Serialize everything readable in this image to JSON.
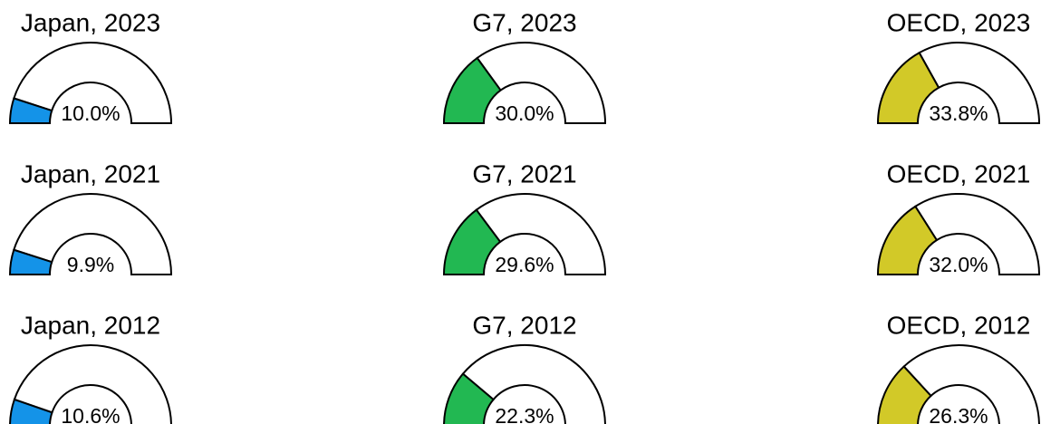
{
  "chart_data": [
    {
      "type": "gauge",
      "title": "Japan, 2023",
      "values": [
        10.0
      ],
      "value_labels": [
        "10.0%"
      ],
      "color": "#1493e8",
      "ylim": [
        0,
        100
      ]
    },
    {
      "type": "gauge",
      "title": "G7, 2023",
      "values": [
        30.0
      ],
      "value_labels": [
        "30.0%"
      ],
      "color": "#22b852",
      "ylim": [
        0,
        100
      ]
    },
    {
      "type": "gauge",
      "title": "OECD, 2023",
      "values": [
        33.8
      ],
      "value_labels": [
        "33.8%"
      ],
      "color": "#d2c928",
      "ylim": [
        0,
        100
      ]
    },
    {
      "type": "gauge",
      "title": "Japan, 2021",
      "values": [
        9.9
      ],
      "value_labels": [
        "9.9%"
      ],
      "color": "#1493e8",
      "ylim": [
        0,
        100
      ]
    },
    {
      "type": "gauge",
      "title": "G7, 2021",
      "values": [
        29.6
      ],
      "value_labels": [
        "29.6%"
      ],
      "color": "#22b852",
      "ylim": [
        0,
        100
      ]
    },
    {
      "type": "gauge",
      "title": "OECD, 2021",
      "values": [
        32.0
      ],
      "value_labels": [
        "32.0%"
      ],
      "color": "#d2c928",
      "ylim": [
        0,
        100
      ]
    },
    {
      "type": "gauge",
      "title": "Japan, 2012",
      "values": [
        10.6
      ],
      "value_labels": [
        "10.6%"
      ],
      "color": "#1493e8",
      "ylim": [
        0,
        100
      ]
    },
    {
      "type": "gauge",
      "title": "G7, 2012",
      "values": [
        22.3
      ],
      "value_labels": [
        "22.3%"
      ],
      "color": "#22b852",
      "ylim": [
        0,
        100
      ]
    },
    {
      "type": "gauge",
      "title": "OECD, 2012",
      "values": [
        26.3
      ],
      "value_labels": [
        "26.3%"
      ],
      "color": "#d2c928",
      "ylim": [
        0,
        100
      ]
    }
  ]
}
